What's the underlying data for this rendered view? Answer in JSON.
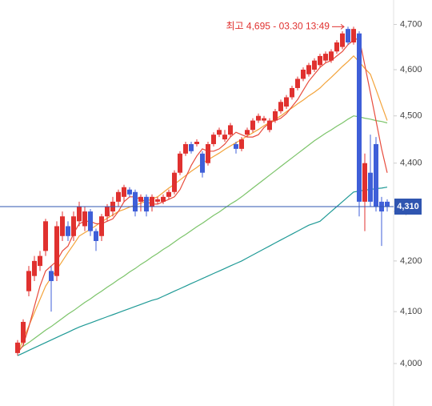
{
  "chart_data": {
    "type": "candlestick",
    "log_scale": true,
    "ylim": [
      3920,
      4755
    ],
    "yticks": [
      {
        "value": 4000,
        "label": "4,000"
      },
      {
        "value": 4100,
        "label": "4,100"
      },
      {
        "value": 4200,
        "label": "4,200"
      },
      {
        "value": 4300,
        "label": "4,300"
      },
      {
        "value": 4400,
        "label": "4,400"
      },
      {
        "value": 4500,
        "label": "4,500"
      },
      {
        "value": 4600,
        "label": "4,600"
      },
      {
        "value": 4700,
        "label": "4,700"
      }
    ],
    "up_color": "#e0312f",
    "down_color": "#3f5fd8",
    "open": [
      4020,
      4040,
      4140,
      4170,
      4190,
      4220,
      4180,
      4170,
      4250,
      4270,
      4250,
      4280,
      4270,
      4300,
      4260,
      4250,
      4290,
      4300,
      4320,
      4330,
      4345,
      4340,
      4320,
      4330,
      4310,
      4320,
      4320,
      4330,
      4340,
      4380,
      4420,
      4440,
      4440,
      4420,
      4400,
      4440,
      4460,
      4450,
      4460,
      4440,
      4430,
      4460,
      4470,
      4490,
      4490,
      4470,
      4490,
      4510,
      4520,
      4540,
      4560,
      4580,
      4590,
      4600,
      4610,
      4620,
      4620,
      4640,
      4650,
      4690,
      4660,
      4680,
      4320,
      4380,
      4440,
      4320,
      4320
    ],
    "close": [
      4040,
      4080,
      4180,
      4200,
      4210,
      4280,
      4160,
      4270,
      4290,
      4250,
      4290,
      4310,
      4300,
      4260,
      4240,
      4290,
      4310,
      4320,
      4340,
      4350,
      4335,
      4300,
      4330,
      4300,
      4330,
      4325,
      4330,
      4340,
      4380,
      4420,
      4440,
      4425,
      4445,
      4380,
      4440,
      4460,
      4470,
      4460,
      4480,
      4430,
      4450,
      4470,
      4490,
      4500,
      4495,
      4490,
      4510,
      4530,
      4540,
      4560,
      4580,
      4600,
      4610,
      4620,
      4630,
      4635,
      4640,
      4660,
      4680,
      4660,
      4690,
      4320,
      4400,
      4320,
      4310,
      4300,
      4310
    ],
    "high": [
      4045,
      4085,
      4190,
      4210,
      4220,
      4285,
      4190,
      4280,
      4300,
      4280,
      4300,
      4320,
      4310,
      4305,
      4265,
      4295,
      4315,
      4330,
      4345,
      4355,
      4350,
      4345,
      4335,
      4335,
      4335,
      4330,
      4335,
      4345,
      4385,
      4425,
      4445,
      4445,
      4450,
      4425,
      4445,
      4465,
      4475,
      4470,
      4485,
      4445,
      4455,
      4475,
      4495,
      4505,
      4500,
      4495,
      4515,
      4535,
      4545,
      4565,
      4585,
      4605,
      4615,
      4625,
      4635,
      4640,
      4645,
      4665,
      4685,
      4695,
      4695,
      4685,
      4420,
      4460,
      4455,
      4330,
      4325
    ],
    "low": [
      4015,
      4035,
      4130,
      4160,
      4180,
      4210,
      4100,
      4160,
      4240,
      4240,
      4240,
      4270,
      4260,
      4250,
      4220,
      4240,
      4280,
      4290,
      4310,
      4320,
      4330,
      4290,
      4300,
      4290,
      4300,
      4315,
      4315,
      4325,
      4335,
      4375,
      4415,
      4420,
      4435,
      4370,
      4395,
      4435,
      4455,
      4445,
      4455,
      4420,
      4425,
      4455,
      4465,
      4485,
      4485,
      4465,
      4485,
      4505,
      4515,
      4535,
      4555,
      4575,
      4585,
      4595,
      4605,
      4615,
      4615,
      4635,
      4645,
      4655,
      4655,
      4290,
      4260,
      4310,
      4300,
      4230,
      4300
    ],
    "ma_series": [
      {
        "color": "#1f9a96",
        "values": [
          4015,
          4020,
          4025,
          4030,
          4035,
          4040,
          4045,
          4050,
          4055,
          4060,
          4065,
          4070,
          4074,
          4078,
          4082,
          4086,
          4090,
          4094,
          4098,
          4102,
          4106,
          4110,
          4114,
          4118,
          4122,
          4125,
          4130,
          4135,
          4140,
          4145,
          4150,
          4155,
          4160,
          4165,
          4170,
          4175,
          4180,
          4185,
          4190,
          4195,
          4200,
          4206,
          4212,
          4218,
          4224,
          4230,
          4236,
          4242,
          4248,
          4254,
          4260,
          4266,
          4272,
          4276,
          4280,
          4290,
          4300,
          4310,
          4320,
          4330,
          4340,
          4342,
          4344,
          4345,
          4347,
          4348,
          4350
        ]
      },
      {
        "color": "#7cc46a",
        "values": [
          4025,
          4033,
          4040,
          4048,
          4056,
          4064,
          4071,
          4079,
          4087,
          4095,
          4102,
          4110,
          4118,
          4125,
          4133,
          4140,
          4148,
          4155,
          4163,
          4170,
          4178,
          4185,
          4193,
          4200,
          4208,
          4215,
          4223,
          4230,
          4238,
          4246,
          4253,
          4261,
          4269,
          4276,
          4284,
          4292,
          4299,
          4307,
          4315,
          4322,
          4330,
          4339,
          4348,
          4357,
          4366,
          4375,
          4384,
          4393,
          4402,
          4411,
          4420,
          4429,
          4438,
          4447,
          4455,
          4463,
          4470,
          4478,
          4485,
          4493,
          4500,
          4498,
          4495,
          4493,
          4490,
          4488,
          4485
        ]
      },
      {
        "color": "#f3a33a",
        "values": [
          4020,
          4046,
          4072,
          4098,
          4124,
          4150,
          4167,
          4183,
          4200,
          4217,
          4233,
          4250,
          4257,
          4264,
          4271,
          4279,
          4286,
          4293,
          4300,
          4304,
          4309,
          4313,
          4317,
          4321,
          4326,
          4330,
          4339,
          4348,
          4356,
          4365,
          4374,
          4383,
          4391,
          4400,
          4407,
          4414,
          4421,
          4429,
          4436,
          4443,
          4450,
          4457,
          4464,
          4471,
          4479,
          4486,
          4493,
          4500,
          4509,
          4517,
          4526,
          4534,
          4543,
          4551,
          4560,
          4572,
          4583,
          4595,
          4607,
          4618,
          4630,
          4617,
          4603,
          4590,
          4557,
          4523,
          4490
        ]
      },
      {
        "color": "#e84c3d",
        "values": [
          4020,
          4035,
          4070,
          4110,
          4150,
          4180,
          4190,
          4200,
          4220,
          4230,
          4255,
          4275,
          4280,
          4280,
          4275,
          4275,
          4280,
          4285,
          4300,
          4320,
          4330,
          4330,
          4325,
          4320,
          4315,
          4315,
          4320,
          4325,
          4330,
          4345,
          4370,
          4395,
          4415,
          4430,
          4425,
          4425,
          4430,
          4440,
          4455,
          4465,
          4460,
          4455,
          4455,
          4460,
          4475,
          4485,
          4490,
          4495,
          4505,
          4520,
          4535,
          4555,
          4575,
          4590,
          4605,
          4615,
          4620,
          4630,
          4640,
          4655,
          4665,
          4670,
          4610,
          4550,
          4490,
          4430,
          4380
        ]
      }
    ],
    "price_line": {
      "value": 4310,
      "label": "4,310",
      "color": "#2f55b0"
    },
    "annotation": "최고 4,695 - 03.30 13:49",
    "annotation_color": "#e0312f"
  }
}
